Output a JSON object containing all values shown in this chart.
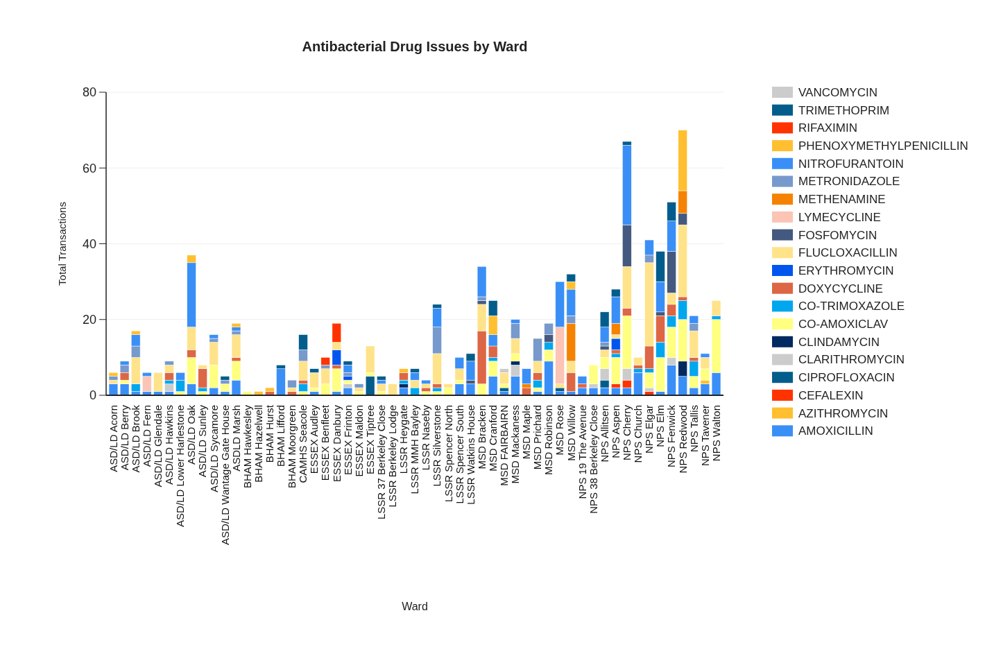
{
  "chart_data": {
    "type": "bar",
    "stacked": true,
    "title": "Antibacterial Drug Issues by Ward",
    "xlabel": "Ward",
    "ylabel": "Total Transactions",
    "ylim": [
      0,
      80
    ],
    "yticks": [
      0,
      20,
      40,
      60,
      80
    ],
    "grid": "y",
    "legend": "right",
    "categories": [
      "ASD/LD Acorn",
      "ASD/LD Berry",
      "ASD/LD Brook",
      "ASD/LD Fern",
      "ASD/LD Glendale",
      "ASD/LD Hawkins",
      "ASD/LD Lower Harlestone",
      "ASD/LD Oak",
      "ASD/LD Sunley",
      "ASD/LD Sycamore",
      "ASD/LD Wantage Gate House",
      "ASDLD Marsh",
      "BHAM Hawkesley",
      "BHAM Hazelwell",
      "BHAM Hurst",
      "BHAM Lifford",
      "BHAM Moorgreen",
      "CAMHS Seacole",
      "ESSEX Audley",
      "ESSEX Benfleet",
      "ESSEX Danbury",
      "ESSEX Frinton",
      "ESSEX Maldon",
      "ESSEX Tiptree",
      "LSSR 37 Berkeley Close",
      "LSSR Berkeley Lodge",
      "LSSR Heygate",
      "LSSR MMH Bayley",
      "LSSR Naseby",
      "LSSR Silverstone",
      "LSSR Spencer North",
      "LSSR Spencer South",
      "LSSR Watkins House",
      "MSD Bracken",
      "MSD Cranford",
      "MSD FAIRBAIRN",
      "MSD Mackaness",
      "MSD Maple",
      "MSD Prichard",
      "MSD Robinson",
      "MSD Rose",
      "MSD Willow",
      "NPS 19 The Avenue",
      "NPS 38 Berkeley Close",
      "NPS Allitsen",
      "NPS Aspen",
      "NPS Cherry",
      "NPS Church",
      "NPS Elgar",
      "NPS Elm",
      "NPS Fenwick",
      "NPS Redwood",
      "NPS Tallis",
      "NPS Tavener",
      "NPS Walton"
    ],
    "series": [
      {
        "name": "AMOXICILLIN",
        "color": "#3a8ff7",
        "values": [
          3,
          3,
          1,
          1,
          1,
          1,
          null,
          3,
          null,
          2,
          1,
          4,
          null,
          null,
          null,
          7,
          null,
          null,
          1,
          null,
          1,
          2,
          null,
          null,
          null,
          null,
          2,
          null,
          null,
          null,
          null,
          3,
          3,
          null,
          5,
          1,
          5,
          null,
          1,
          9,
          1,
          1,
          2,
          2,
          2,
          2,
          2,
          6,
          null,
          1,
          8,
          5,
          2,
          3,
          6
        ]
      },
      {
        "name": "AZITHROMYCIN",
        "color": "#ffbf30",
        "values": [
          null,
          null,
          null,
          null,
          null,
          null,
          null,
          null,
          null,
          null,
          null,
          null,
          null,
          1,
          null,
          null,
          null,
          null,
          null,
          null,
          null,
          null,
          null,
          null,
          null,
          null,
          null,
          null,
          null,
          null,
          null,
          null,
          null,
          null,
          null,
          null,
          null,
          null,
          null,
          null,
          null,
          null,
          null,
          null,
          null,
          null,
          null,
          null,
          null,
          null,
          null,
          null,
          null,
          1,
          null
        ]
      },
      {
        "name": "CEFALEXIN",
        "color": "#ff3300",
        "values": [
          null,
          null,
          null,
          null,
          null,
          null,
          null,
          null,
          null,
          null,
          null,
          null,
          null,
          null,
          null,
          null,
          null,
          null,
          null,
          null,
          null,
          null,
          null,
          null,
          null,
          null,
          null,
          null,
          null,
          null,
          null,
          null,
          null,
          null,
          null,
          null,
          null,
          null,
          null,
          null,
          null,
          null,
          null,
          null,
          null,
          1,
          2,
          null,
          1,
          null,
          null,
          null,
          null,
          null,
          null
        ]
      },
      {
        "name": "CIPROFLOXACIN",
        "color": "#035d8c",
        "values": [
          null,
          null,
          null,
          null,
          null,
          null,
          null,
          null,
          null,
          null,
          null,
          null,
          null,
          null,
          null,
          null,
          null,
          null,
          null,
          null,
          null,
          null,
          null,
          5,
          null,
          null,
          null,
          null,
          null,
          null,
          null,
          null,
          null,
          null,
          null,
          1,
          null,
          null,
          null,
          null,
          1,
          null,
          null,
          null,
          2,
          null,
          null,
          null,
          null,
          null,
          null,
          null,
          null,
          null,
          null
        ]
      },
      {
        "name": "CLARITHROMYCIN",
        "color": "#cccccc",
        "values": [
          null,
          null,
          null,
          null,
          null,
          2,
          null,
          null,
          null,
          null,
          null,
          null,
          null,
          null,
          null,
          null,
          null,
          null,
          null,
          null,
          null,
          1,
          null,
          null,
          null,
          null,
          null,
          null,
          null,
          null,
          null,
          null,
          null,
          null,
          null,
          null,
          3,
          null,
          null,
          null,
          null,
          null,
          null,
          1,
          3,
          null,
          3,
          null,
          1,
          null,
          2,
          null,
          null,
          null,
          null
        ]
      },
      {
        "name": "CLINDAMYCIN",
        "color": "#002a60",
        "values": [
          null,
          null,
          null,
          null,
          null,
          null,
          null,
          null,
          null,
          null,
          null,
          null,
          null,
          null,
          null,
          null,
          null,
          null,
          null,
          null,
          null,
          null,
          null,
          null,
          null,
          null,
          1,
          null,
          null,
          null,
          null,
          null,
          null,
          null,
          null,
          null,
          1,
          null,
          null,
          null,
          null,
          null,
          null,
          null,
          null,
          null,
          null,
          null,
          null,
          null,
          null,
          4,
          null,
          null,
          null
        ]
      },
      {
        "name": "CO-AMOXICLAV",
        "color": "#ffff80",
        "values": [
          null,
          1,
          null,
          null,
          null,
          null,
          1,
          7,
          1,
          6,
          2,
          5,
          1,
          null,
          null,
          null,
          null,
          1,
          1,
          3,
          6,
          1,
          1,
          1,
          1,
          null,
          null,
          null,
          1,
          1,
          2,
          1,
          null,
          3,
          4,
          1,
          2,
          null,
          1,
          3,
          null,
          null,
          null,
          5,
          3,
          7,
          14,
          null,
          4,
          9,
          8,
          11,
          3,
          3,
          14
        ]
      },
      {
        "name": "CO-TRIMOXAZOLE",
        "color": "#00a6ee",
        "values": [
          null,
          null,
          2,
          null,
          null,
          1,
          3,
          null,
          1,
          null,
          null,
          null,
          null,
          null,
          null,
          null,
          null,
          2,
          null,
          null,
          null,
          null,
          null,
          null,
          null,
          null,
          1,
          2,
          null,
          1,
          null,
          null,
          null,
          null,
          1,
          null,
          null,
          null,
          2,
          2,
          null,
          null,
          null,
          null,
          null,
          1,
          null,
          1,
          1,
          4,
          3,
          5,
          4,
          null,
          1
        ]
      },
      {
        "name": "DOXYCYCLINE",
        "color": "#dd6644",
        "values": [
          null,
          2,
          null,
          null,
          null,
          2,
          null,
          2,
          5,
          null,
          null,
          1,
          null,
          null,
          1,
          null,
          1,
          1,
          null,
          null,
          1,
          null,
          null,
          null,
          null,
          null,
          2,
          null,
          1,
          1,
          null,
          null,
          null,
          14,
          3,
          null,
          null,
          2,
          2,
          null,
          null,
          5,
          1,
          null,
          null,
          1,
          2,
          1,
          6,
          7,
          3,
          1,
          1,
          null,
          null
        ]
      },
      {
        "name": "ERYTHROMYCIN",
        "color": "#0055ee",
        "values": [
          null,
          null,
          null,
          null,
          null,
          null,
          null,
          null,
          null,
          null,
          null,
          null,
          null,
          null,
          null,
          null,
          null,
          null,
          null,
          null,
          4,
          1,
          null,
          null,
          null,
          null,
          null,
          null,
          null,
          null,
          null,
          null,
          null,
          null,
          null,
          null,
          null,
          null,
          null,
          null,
          null,
          null,
          null,
          null,
          null,
          3,
          null,
          null,
          null,
          null,
          null,
          null,
          null,
          null,
          null
        ]
      },
      {
        "name": "FLUCLOXACILLIN",
        "color": "#ffe38a",
        "values": [
          1,
          null,
          7,
          null,
          5,
          2,
          null,
          6,
          1,
          6,
          null,
          6,
          null,
          null,
          null,
          null,
          1,
          5,
          4,
          4,
          2,
          null,
          1,
          7,
          2,
          3,
          null,
          2,
          1,
          8,
          1,
          3,
          null,
          7,
          null,
          3,
          4,
          null,
          3,
          null,
          1,
          3,
          null,
          null,
          2,
          1,
          11,
          2,
          22,
          null,
          3,
          19,
          7,
          3,
          4
        ]
      },
      {
        "name": "FOSFOMYCIN",
        "color": "#44597f",
        "values": [
          null,
          null,
          null,
          null,
          null,
          null,
          null,
          null,
          null,
          null,
          null,
          null,
          null,
          null,
          null,
          null,
          null,
          null,
          null,
          null,
          null,
          null,
          null,
          null,
          null,
          null,
          null,
          null,
          null,
          null,
          null,
          null,
          1,
          1,
          null,
          null,
          null,
          null,
          null,
          2,
          null,
          null,
          null,
          null,
          1,
          null,
          11,
          null,
          null,
          1,
          11,
          3,
          null,
          null,
          null
        ]
      },
      {
        "name": "LYMECYCLINE",
        "color": "#fcc4b4",
        "values": [
          null,
          null,
          null,
          4,
          null,
          null,
          null,
          null,
          null,
          null,
          null,
          null,
          null,
          null,
          null,
          null,
          null,
          null,
          null,
          null,
          null,
          null,
          null,
          null,
          null,
          null,
          null,
          null,
          null,
          null,
          null,
          null,
          null,
          null,
          null,
          null,
          null,
          null,
          null,
          null,
          15,
          null,
          null,
          null,
          null,
          null,
          null,
          null,
          null,
          null,
          null,
          null,
          null,
          null,
          null
        ]
      },
      {
        "name": "METHENAMINE",
        "color": "#f58200",
        "values": [
          null,
          null,
          null,
          null,
          null,
          null,
          null,
          null,
          null,
          null,
          null,
          null,
          null,
          null,
          null,
          null,
          null,
          null,
          null,
          null,
          null,
          null,
          null,
          null,
          null,
          null,
          null,
          null,
          null,
          null,
          null,
          null,
          null,
          null,
          null,
          null,
          null,
          1,
          null,
          null,
          null,
          10,
          null,
          null,
          null,
          3,
          null,
          null,
          null,
          null,
          null,
          6,
          null,
          null,
          null
        ]
      },
      {
        "name": "METRONIDAZOLE",
        "color": "#7799cc",
        "values": [
          1,
          2,
          3,
          null,
          null,
          1,
          null,
          null,
          null,
          1,
          1,
          1,
          null,
          null,
          null,
          null,
          2,
          3,
          null,
          1,
          null,
          1,
          1,
          null,
          null,
          null,
          null,
          null,
          null,
          7,
          null,
          null,
          null,
          1,
          null,
          null,
          4,
          null,
          6,
          3,
          null,
          2,
          null,
          null,
          1,
          null,
          null,
          null,
          2,
          null,
          null,
          null,
          2,
          null,
          null
        ]
      },
      {
        "name": "NITROFURANTOIN",
        "color": "#3a8ff7",
        "values": [
          null,
          1,
          3,
          1,
          null,
          null,
          2,
          17,
          null,
          1,
          null,
          1,
          null,
          null,
          null,
          null,
          null,
          null,
          null,
          null,
          null,
          2,
          null,
          null,
          1,
          null,
          null,
          2,
          1,
          5,
          null,
          3,
          5,
          8,
          3,
          null,
          1,
          4,
          null,
          null,
          12,
          7,
          2,
          null,
          4,
          7,
          21,
          null,
          4,
          8,
          8,
          null,
          2,
          1,
          null
        ]
      },
      {
        "name": "PHENOXYMETHYLPENICILLIN",
        "color": "#ffbf30",
        "values": [
          1,
          null,
          1,
          null,
          null,
          null,
          null,
          2,
          null,
          null,
          null,
          1,
          null,
          null,
          1,
          null,
          null,
          null,
          null,
          null,
          null,
          null,
          null,
          null,
          null,
          null,
          1,
          null,
          null,
          null,
          null,
          null,
          null,
          null,
          5,
          null,
          null,
          null,
          null,
          null,
          null,
          2,
          null,
          null,
          null,
          null,
          null,
          null,
          null,
          null,
          null,
          16,
          null,
          null,
          null
        ]
      },
      {
        "name": "RIFAXIMIN",
        "color": "#ff3300",
        "values": [
          null,
          null,
          null,
          null,
          null,
          null,
          null,
          null,
          null,
          null,
          null,
          null,
          null,
          null,
          null,
          null,
          null,
          null,
          null,
          2,
          5,
          null,
          null,
          null,
          null,
          null,
          null,
          null,
          null,
          null,
          null,
          null,
          null,
          null,
          null,
          null,
          null,
          null,
          null,
          null,
          null,
          null,
          null,
          null,
          null,
          null,
          null,
          null,
          null,
          null,
          null,
          null,
          null,
          null,
          null
        ]
      },
      {
        "name": "TRIMETHOPRIM",
        "color": "#035d8c",
        "values": [
          null,
          null,
          null,
          null,
          null,
          null,
          null,
          null,
          null,
          null,
          1,
          null,
          null,
          null,
          null,
          1,
          null,
          4,
          1,
          null,
          null,
          1,
          null,
          null,
          1,
          null,
          null,
          1,
          null,
          1,
          null,
          null,
          2,
          null,
          4,
          null,
          null,
          null,
          null,
          null,
          null,
          2,
          null,
          null,
          4,
          2,
          1,
          null,
          null,
          8,
          5,
          null,
          null,
          null,
          null
        ]
      },
      {
        "name": "VANCOMYCIN",
        "color": "#cccccc",
        "values": [
          null,
          null,
          null,
          null,
          null,
          null,
          null,
          null,
          null,
          null,
          null,
          null,
          null,
          null,
          null,
          null,
          null,
          null,
          null,
          null,
          null,
          null,
          null,
          null,
          null,
          null,
          null,
          null,
          null,
          null,
          null,
          null,
          null,
          null,
          null,
          1,
          null,
          null,
          null,
          null,
          null,
          null,
          null,
          null,
          null,
          null,
          null,
          null,
          null,
          null,
          null,
          null,
          null,
          null,
          null
        ]
      }
    ]
  }
}
